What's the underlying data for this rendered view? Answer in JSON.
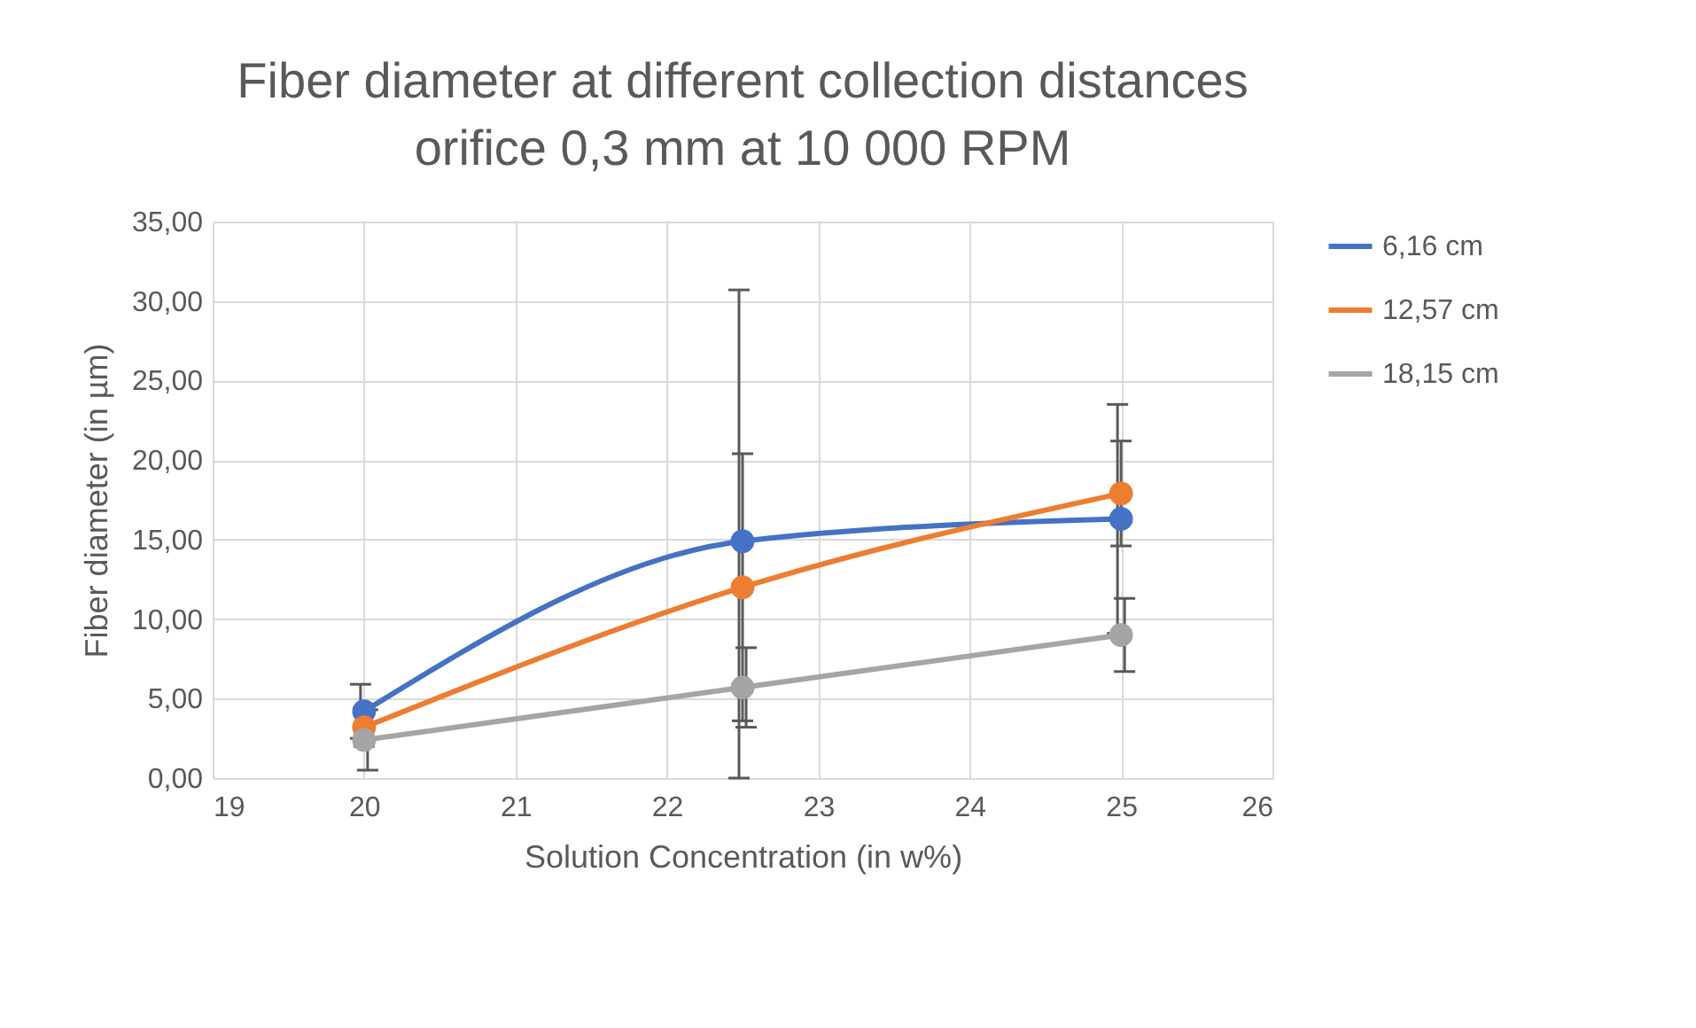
{
  "chart_data": {
    "type": "line",
    "title": "Fiber diameter at different collection distances orifice 0,3 mm at 10 000 RPM",
    "xlabel": "Solution Concentration (in w%)",
    "ylabel": "Fiber diameter (in µm)",
    "x": [
      20,
      22.5,
      25
    ],
    "series": [
      {
        "name": "6,16 cm",
        "color": "#4472c4",
        "values": [
          4.2,
          14.9,
          16.3
        ],
        "errors": [
          1.7,
          [
            0,
            30.7
          ],
          7.2
        ]
      },
      {
        "name": "12,57 cm",
        "color": "#ed7d31",
        "values": [
          3.2,
          12.0,
          17.9
        ],
        "errors": [
          1.2,
          8.4,
          3.3
        ]
      },
      {
        "name": "18,15 cm",
        "color": "#a5a5a5",
        "values": [
          2.4,
          5.7,
          9.0
        ],
        "errors": [
          1.9,
          2.5,
          2.3
        ]
      }
    ],
    "xlim": [
      19,
      26
    ],
    "xticks": [
      19,
      20,
      21,
      22,
      23,
      24,
      25,
      26
    ],
    "ylim": [
      0,
      35
    ],
    "yticks": [
      {
        "value": 0,
        "label": "0,00"
      },
      {
        "value": 5,
        "label": "5,00"
      },
      {
        "value": 10,
        "label": "10,00"
      },
      {
        "value": 15,
        "label": "15,00"
      },
      {
        "value": 20,
        "label": "20,00"
      },
      {
        "value": 25,
        "label": "25,00"
      },
      {
        "value": 30,
        "label": "30,00"
      },
      {
        "value": 35,
        "label": "35,00"
      }
    ],
    "grid": true,
    "legend": "right",
    "marker": "circle",
    "line_style": "solid"
  }
}
